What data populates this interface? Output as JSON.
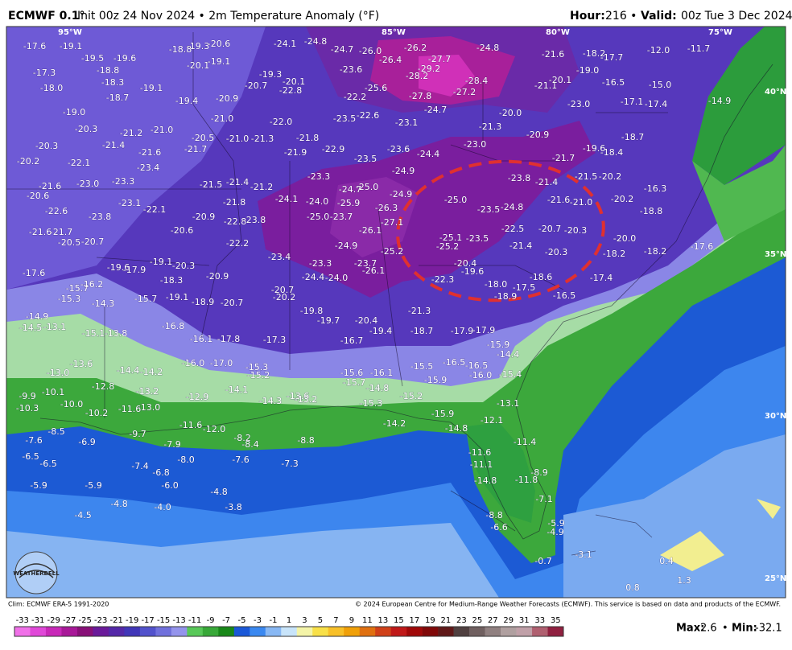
{
  "header": {
    "model": "ECMWF 0.1°",
    "rest": "Init 00z 24 Nov 2024 • 2m Temperature Anomaly (°F)",
    "hour_label": "Hour:",
    "hour": "216 •",
    "valid_label": "Valid:",
    "valid": "00z Tue 3 Dec 2024"
  },
  "grid_labels": [
    "95°W",
    "85°W",
    "80°W",
    "75°W",
    "40°N",
    "35°N",
    "30°N",
    "25°N"
  ],
  "logo": "WEATHERBELL",
  "map_labels": [
    "-17.6",
    "-19.1",
    "-19.5",
    "-19.6",
    "-18.8",
    "-19.3",
    "-20.6",
    "-20.1",
    "-19.1",
    "-24.1",
    "-24.8",
    "-24.7",
    "-26.0",
    "-26.2",
    "-24.8",
    "-21.6",
    "-18.2",
    "-17.7",
    "-12.0",
    "-11.7",
    "-17.3",
    "-18.8",
    "-18.3",
    "-19.1",
    "-18.7",
    "-18.0",
    "-19.4",
    "-20.9",
    "-20.7",
    "-19.3",
    "-20.1",
    "-22.8",
    "-23.6",
    "-26.4",
    "-27.7",
    "-28.2",
    "-29.2",
    "-28.4",
    "-27.2",
    "-27.8",
    "-25.6",
    "-22.2",
    "-21.1",
    "-20.1",
    "-19.0",
    "-16.5",
    "-15.0",
    "-19.0",
    "-20.3",
    "-21.2",
    "-21.0",
    "-21.0",
    "-22.0",
    "-23.5",
    "-22.6",
    "-23.1",
    "-24.7",
    "-20.0",
    "-23.0",
    "-17.1",
    "-17.4",
    "-14.9",
    "-20.3",
    "-21.4",
    "-21.6",
    "-20.5",
    "-21.7",
    "-21.0",
    "-21.3",
    "-21.8",
    "-21.9",
    "-22.9",
    "-21.3",
    "-20.9",
    "-21.7",
    "-19.6",
    "-18.4",
    "-18.7",
    "-20.2",
    "-22.1",
    "-23.4",
    "-23.5",
    "-23.6",
    "-24.4",
    "-23.0",
    "-21.6",
    "-23.0",
    "-23.3",
    "-21.5",
    "-21.4",
    "-21.2",
    "-23.3",
    "-24.9",
    "-23.8",
    "-21.4",
    "-21.5",
    "-20.2",
    "-16.3",
    "-20.6",
    "-22.6",
    "-23.8",
    "-23.1",
    "-22.1",
    "-20.9",
    "-21.8",
    "-24.1",
    "-24.0",
    "-24.7",
    "-25.0",
    "-25.9",
    "-24.9",
    "-25.0",
    "-23.5",
    "-24.8",
    "-21.6",
    "-21.0",
    "-20.2",
    "-18.8",
    "-22.8",
    "-23.8",
    "-25.0",
    "-23.7",
    "-26.3",
    "-27.1",
    "-26.1",
    "-21.6",
    "-21.7",
    "-20.6",
    "-22.5",
    "-20.7",
    "-20.3",
    "-20.0",
    "-22.2",
    "-24.9",
    "-25.2",
    "-25.1",
    "-25.2",
    "-23.5",
    "-21.4",
    "-20.3",
    "-18.2",
    "-18.2",
    "-17.6",
    "-20.5",
    "-20.7",
    "-23.4",
    "-23.3",
    "-23.7",
    "-26.1",
    "-20.4",
    "-19.6",
    "-19.6",
    "-17.9",
    "-19.1",
    "-20.3",
    "-20.9",
    "-24.4",
    "-24.0",
    "-22.3",
    "-18.6",
    "-17.4",
    "-17.6",
    "-15.7",
    "-16.2",
    "-18.3",
    "-20.7",
    "-20.2",
    "-18.0",
    "-17.5",
    "-18.9",
    "-16.5",
    "-15.3",
    "-14.3",
    "-15.7",
    "-19.1",
    "-18.9",
    "-20.7",
    "-19.8",
    "-21.3",
    "-14.9",
    "-14.5",
    "-13.1",
    "-16.8",
    "-19.7",
    "-20.4",
    "-19.4",
    "-18.7",
    "-17.9",
    "-17.9",
    "-15.1",
    "-13.8",
    "-16.1",
    "-17.8",
    "-17.3",
    "-16.7",
    "-15.9",
    "-14.4",
    "-13.6",
    "-13.0",
    "-14.4",
    "-14.2",
    "-16.0",
    "-17.0",
    "-15.3",
    "-15.2",
    "-15.6",
    "-16.1",
    "-15.5",
    "-16.5",
    "-16.5",
    "-16.0",
    "-15.4",
    "-15.9",
    "-15.7",
    "-14.8",
    "-12.8",
    "-13.2",
    "-14.1",
    "-14.3",
    "-13.6",
    "-13.2",
    "-15.3",
    "-15.2",
    "-12.9",
    "-9.9",
    "-10.1",
    "-10.0",
    "-10.3",
    "-10.2",
    "-11.6",
    "-13.0",
    "-13.1",
    "-15.9",
    "-12.1",
    "-14.2",
    "-11.6",
    "-12.0",
    "-14.8",
    "-8.5",
    "-7.6",
    "-6.9",
    "-9.7",
    "-7.9",
    "-8.2",
    "-8.4",
    "-8.8",
    "-11.4",
    "-11.6",
    "-11.1",
    "-6.5",
    "-6.5",
    "-7.4",
    "-8.0",
    "-7.6",
    "-7.3",
    "-6.8",
    "-8.9",
    "-5.9",
    "-5.9",
    "-6.0",
    "-4.8",
    "-14.8",
    "-11.8",
    "-7.1",
    "-4.8",
    "-4.0",
    "-3.8",
    "-4.5",
    "-8.8",
    "-5.9",
    "-6.6",
    "-4.9",
    "-3.1",
    "-0.7",
    "0.4",
    "1.3",
    "0.8"
  ],
  "footer": {
    "climo": "Clim: ECMWF ERA-5 1991-2020",
    "copyright": "© 2024 European Centre for Medium-Range Weather Forecasts (ECMWF). This service is based on data and products of the ECMWF."
  },
  "colorbar": {
    "ticks": [
      -33,
      -31,
      -29,
      -27,
      -25,
      -23,
      -21,
      -19,
      -17,
      -15,
      -13,
      -11,
      -9,
      -7,
      -5,
      -3,
      -1,
      1,
      3,
      5,
      7,
      9,
      11,
      13,
      15,
      17,
      19,
      21,
      23,
      25,
      27,
      29,
      31,
      33,
      35
    ],
    "colors": [
      "#f070e8",
      "#e048d8",
      "#c828b8",
      "#a81898",
      "#881078",
      "#6a1a9a",
      "#5428a8",
      "#4036b8",
      "#5252cc",
      "#7070dc",
      "#9494ec",
      "#58c858",
      "#38a838",
      "#188818",
      "#1a58d8",
      "#3a88f0",
      "#88b8f4",
      "#c8e4fa",
      "#f4f4a8",
      "#f8e048",
      "#f8c028",
      "#f0a008",
      "#e07010",
      "#d04018",
      "#c01818",
      "#a00808",
      "#800808",
      "#601818",
      "#504040",
      "#706060",
      "#908080",
      "#b0a0a0",
      "#c0a0a8",
      "#b06070",
      "#902040"
    ]
  },
  "stats": {
    "max_label": "Max:",
    "max": "2.6",
    "separator": "•",
    "min_label": "Min:",
    "min": "-32.1"
  }
}
